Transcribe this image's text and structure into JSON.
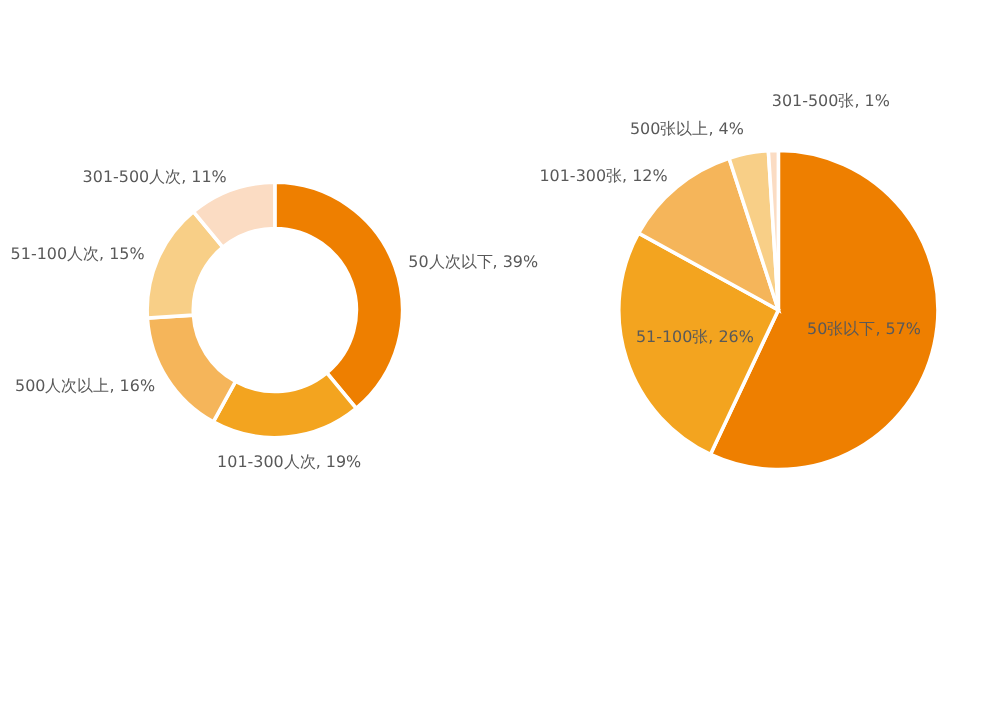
{
  "chart_data": [
    {
      "type": "donut",
      "categories": [
        "50人次以下",
        "101-300人次",
        "500人次以上",
        "51-100人次",
        "301-500人次"
      ],
      "values": [
        39,
        19,
        16,
        15,
        11
      ],
      "value_labels": [
        "39%",
        "19%",
        "16%",
        "15%",
        "11%"
      ],
      "colors": [
        "#ee7f00",
        "#f3a41f",
        "#f5b55a",
        "#f8cf87",
        "#fbdcc3"
      ]
    },
    {
      "type": "pie",
      "categories": [
        "50张以下",
        "51-100张",
        "101-300张",
        "500张以上",
        "301-500张"
      ],
      "values": [
        57,
        26,
        12,
        4,
        1
      ],
      "value_labels": [
        "57%",
        "26%",
        "12%",
        "4%",
        "1%"
      ],
      "colors": [
        "#ee7f00",
        "#f3a41f",
        "#f5b55a",
        "#f8d08a",
        "#fbdcc3"
      ]
    }
  ]
}
